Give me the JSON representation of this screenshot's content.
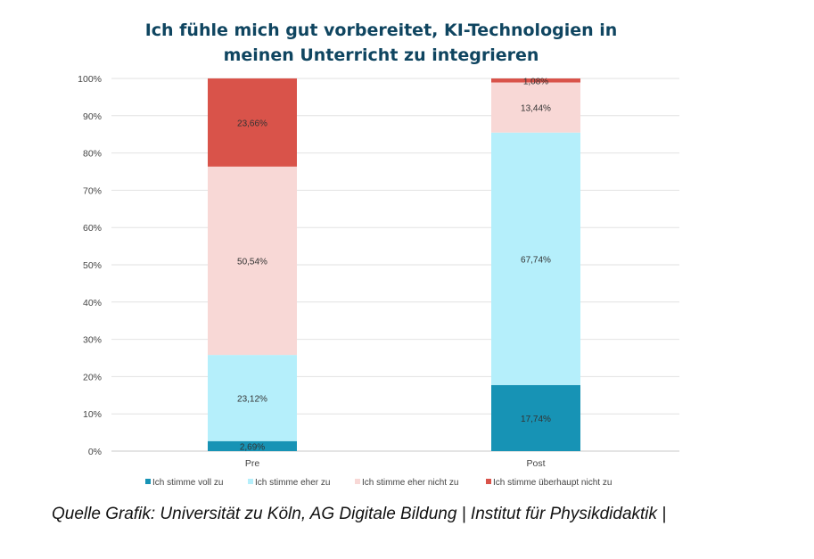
{
  "chart_data": {
    "type": "bar",
    "stacked": true,
    "title_lines": [
      "Ich fühle mich gut vorbereitet, KI-Technologien in",
      "meinen Unterricht zu integrieren"
    ],
    "categories": [
      "Pre",
      "Post"
    ],
    "series": [
      {
        "name": "Ich stimme voll zu",
        "color": "#1793b5",
        "values": [
          2.69,
          17.74
        ],
        "labels": [
          "2,69%",
          "17,74%"
        ]
      },
      {
        "name": "Ich stimme eher zu",
        "color": "#b5effb",
        "values": [
          23.12,
          67.74
        ],
        "labels": [
          "23,12%",
          "67,74%"
        ]
      },
      {
        "name": "Ich stimme eher nicht zu",
        "color": "#f8d8d6",
        "values": [
          50.54,
          13.44
        ],
        "labels": [
          "50,54%",
          "13,44%"
        ]
      },
      {
        "name": "Ich stimme überhaupt nicht zu",
        "color": "#d9534a",
        "values": [
          23.66,
          1.08
        ],
        "labels": [
          "23,66%",
          "1,08%"
        ]
      }
    ],
    "y_ticks": [
      "0%",
      "10%",
      "20%",
      "30%",
      "40%",
      "50%",
      "60%",
      "70%",
      "80%",
      "90%",
      "100%"
    ],
    "ylim": [
      0,
      100
    ],
    "grid": true,
    "legend_position": "bottom"
  },
  "source": "Quelle Grafik: Universität zu Köln, AG Digitale Bildung | Institut für Physikdidaktik |"
}
